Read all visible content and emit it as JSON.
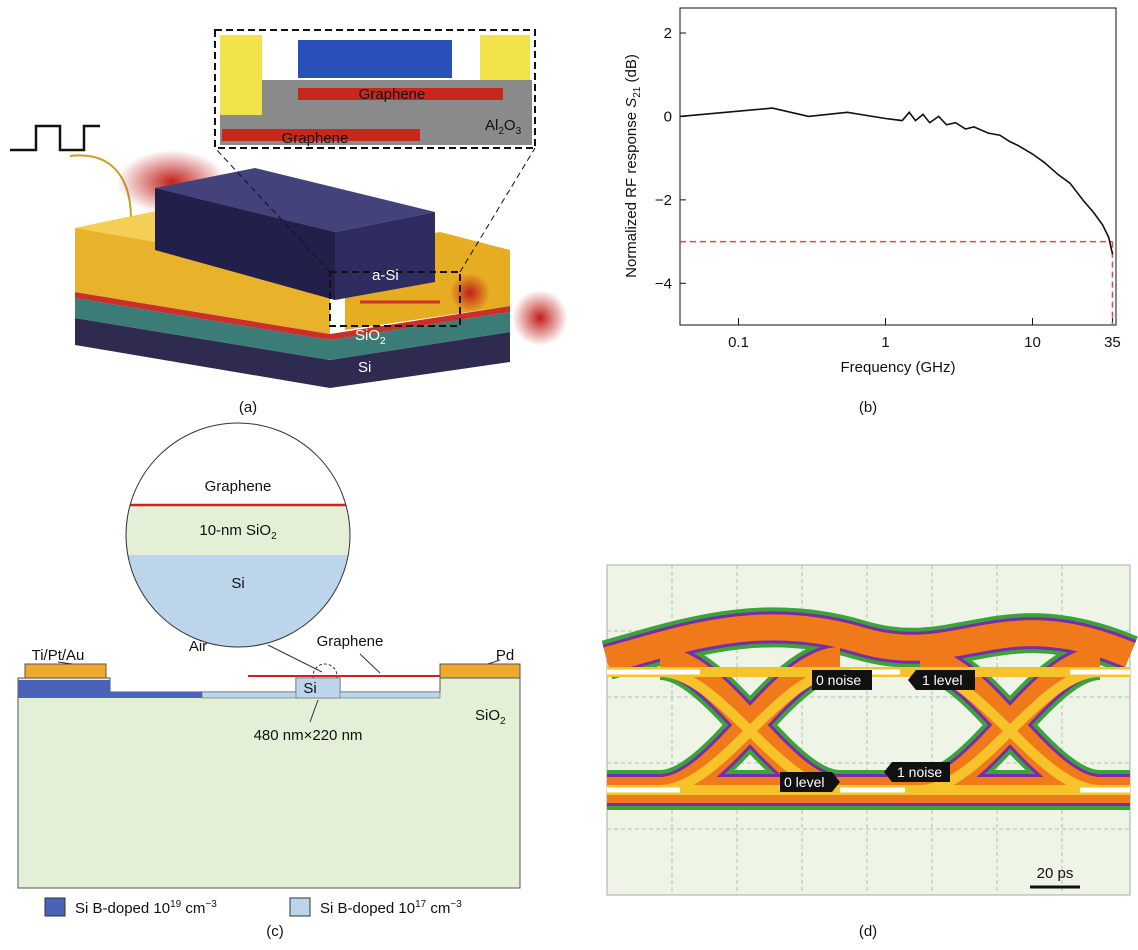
{
  "panel_a": {
    "label": "(a)",
    "inset_graphene_top": "Graphene",
    "inset_graphene_bottom": "Graphene",
    "al2o3": {
      "a": "Al",
      "b": "2",
      "c": "O",
      "d": "3"
    },
    "asi": "a-Si",
    "sio2": {
      "base": "SiO",
      "sub": "2"
    },
    "si": "Si"
  },
  "chart_data": {
    "type": "line",
    "label": "(b)",
    "x_label": "Frequency (GHz)",
    "y_label": {
      "text": "Normalized RF response ",
      "symbol": "S",
      "subscript": "21",
      "unit": " (dB)"
    },
    "xscale": "log",
    "xlim": [
      0.04,
      37
    ],
    "xticks": [
      0.1,
      1,
      10,
      35
    ],
    "ylim": [
      -5,
      2.6
    ],
    "yticks": [
      2,
      0,
      {
        "value": -2,
        "label": "−2"
      },
      {
        "value": -4,
        "label": "−4"
      }
    ],
    "color": "#111111",
    "x": [
      0.04,
      0.17,
      0.3,
      0.55,
      1,
      1.3,
      1.45,
      1.6,
      1.8,
      2,
      2.3,
      2.6,
      3,
      3.5,
      4,
      5,
      6,
      7,
      8,
      10,
      12,
      15,
      18,
      22,
      26,
      30,
      33,
      35
    ],
    "values": [
      0,
      0.2,
      0,
      0.1,
      -0.05,
      -0.1,
      0.1,
      -0.1,
      0.05,
      -0.15,
      0,
      -0.2,
      -0.15,
      -0.3,
      -0.25,
      -0.4,
      -0.45,
      -0.6,
      -0.7,
      -0.9,
      -1.1,
      -1.4,
      -1.6,
      -2,
      -2.3,
      -2.6,
      -2.9,
      -3.3
    ],
    "hline": {
      "value": -3,
      "color": "#e04848"
    },
    "vline": {
      "value": 35,
      "color": "#e04848"
    }
  },
  "panel_c": {
    "label": "(c)",
    "circle_graphene": "Graphene",
    "circle_oxide": {
      "base": "10-nm SiO",
      "sub": "2"
    },
    "circle_si": "Si",
    "contact_left": "Ti/Pt/Au",
    "air": "Air",
    "graphene": "Graphene",
    "contact_right": "Pd",
    "waveguide": "Si",
    "oxide": {
      "base": "SiO",
      "sub": "2"
    },
    "dimensions": "480 nm×220 nm",
    "legend": [
      {
        "text": "Si B-doped 10",
        "exp": "19",
        "unit": " cm",
        "unit_exp": "−3"
      },
      {
        "text": "Si B-doped 10",
        "exp": "17",
        "unit": " cm",
        "unit_exp": "−3"
      }
    ]
  },
  "panel_d": {
    "label": "(d)",
    "zero_noise": "0 noise",
    "one_level": "1 level",
    "zero_level": "0 level",
    "one_noise": "1 noise",
    "scale": "20 ps"
  }
}
